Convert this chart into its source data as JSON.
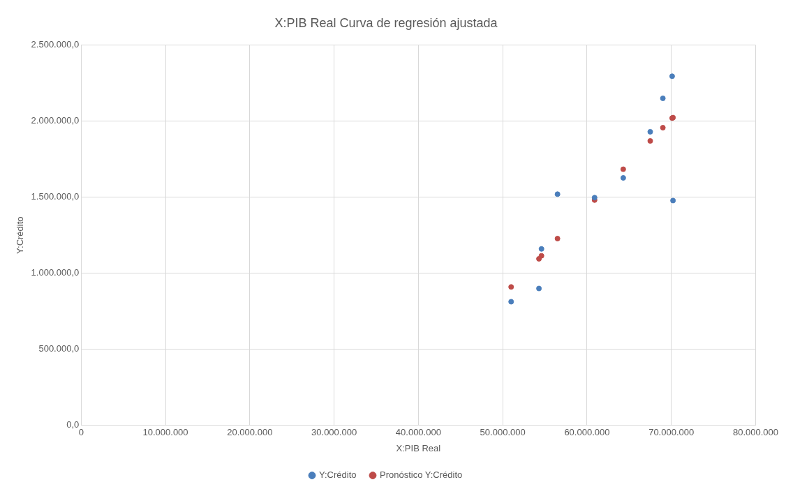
{
  "chart_data": {
    "type": "scatter",
    "title": "X:PIB Real Curva de regresión ajustada",
    "xlabel": "X:PIB Real",
    "ylabel": "Y:Crédito",
    "series": [
      {
        "name": "Y:Crédito",
        "color": "#4a7ebb",
        "x": [
          51000000,
          54300000,
          54600000,
          56500000,
          60900000,
          64300000,
          67500000,
          69000000,
          70100000,
          70200000
        ],
        "values": [
          813000,
          900000,
          1160000,
          1520000,
          1497000,
          1627000,
          1930000,
          2150000,
          2295000,
          1478000
        ]
      },
      {
        "name": "Pronóstico Y:Crédito",
        "color": "#be4b48",
        "x": [
          51000000,
          54300000,
          54600000,
          56500000,
          60900000,
          64300000,
          67500000,
          69000000,
          70100000,
          70200000
        ],
        "values": [
          910000,
          1095000,
          1115000,
          1228000,
          1481000,
          1684000,
          1870000,
          1957000,
          2020000,
          2023000
        ]
      }
    ],
    "xlim": [
      0,
      80000000
    ],
    "ylim": [
      0,
      2500000
    ],
    "xticks": [
      {
        "value": 0,
        "label": "0"
      },
      {
        "value": 10000000,
        "label": "10.000.000"
      },
      {
        "value": 20000000,
        "label": "20.000.000"
      },
      {
        "value": 30000000,
        "label": "30.000.000"
      },
      {
        "value": 40000000,
        "label": "40.000.000"
      },
      {
        "value": 50000000,
        "label": "50.000.000"
      },
      {
        "value": 60000000,
        "label": "60.000.000"
      },
      {
        "value": 70000000,
        "label": "70.000.000"
      },
      {
        "value": 80000000,
        "label": "80.000.000"
      }
    ],
    "yticks": [
      {
        "value": 0,
        "label": "0,0"
      },
      {
        "value": 500000,
        "label": "500.000,0"
      },
      {
        "value": 1000000,
        "label": "1.000.000,0"
      },
      {
        "value": 1500000,
        "label": "1.500.000,0"
      },
      {
        "value": 2000000,
        "label": "2.000.000,0"
      },
      {
        "value": 2500000,
        "label": "2.500.000,0"
      }
    ],
    "grid": true,
    "legend": "bottom",
    "marker": "circle"
  }
}
